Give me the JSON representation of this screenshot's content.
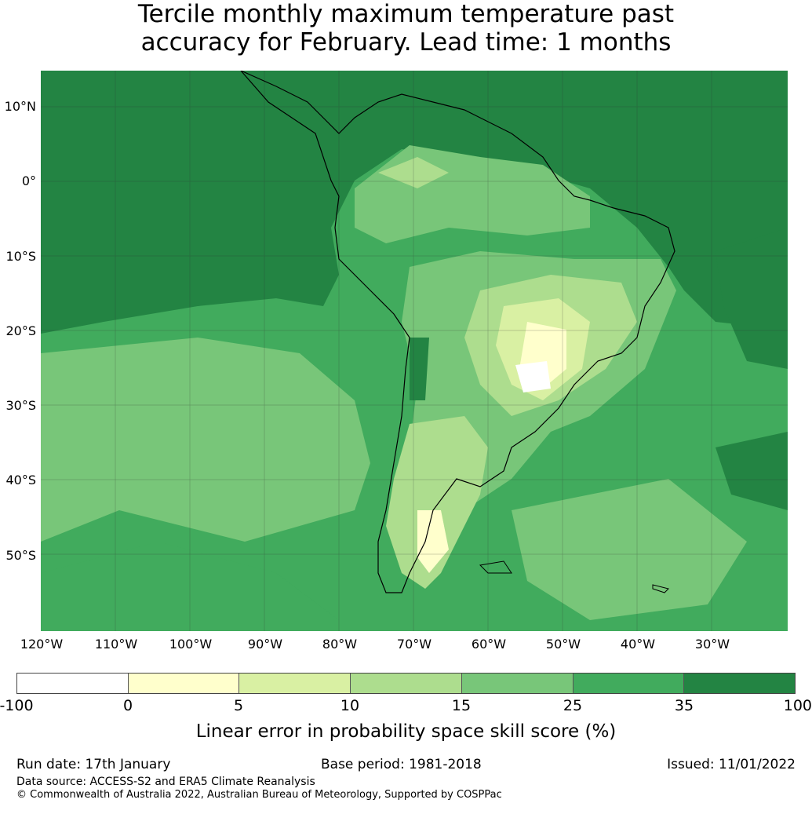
{
  "title_line1": "Tercile monthly maximum temperature past",
  "title_line2": "accuracy for February. Lead time: 1 months",
  "map": {
    "region": "South America",
    "latitude_labels": [
      "10°N",
      "0°",
      "10°S",
      "20°S",
      "30°S",
      "40°S",
      "50°S"
    ],
    "longitude_labels": [
      "120°W",
      "110°W",
      "100°W",
      "90°W",
      "80°W",
      "70°W",
      "60°W",
      "50°W",
      "40°W",
      "30°W"
    ]
  },
  "colorbar": {
    "ticks": [
      "-100",
      "0",
      "5",
      "10",
      "15",
      "25",
      "35",
      "100"
    ],
    "colors": [
      "#ffffff",
      "#ffffcc",
      "#d9f0a3",
      "#addd8e",
      "#78c679",
      "#41ab5d",
      "#238443"
    ],
    "label": "Linear error in probability space skill score (%)"
  },
  "footer": {
    "run_date": "Run date: 17th January",
    "base_period": "Base period: 1981-2018",
    "issued": "Issued: 11/01/2022",
    "data_source": "Data source: ACCESS-S2 and ERA5 Climate Reanalysis",
    "copyright": "© Commonwealth of Australia 2022, Australian Bureau of Meteorology, Supported by COSPPac"
  }
}
